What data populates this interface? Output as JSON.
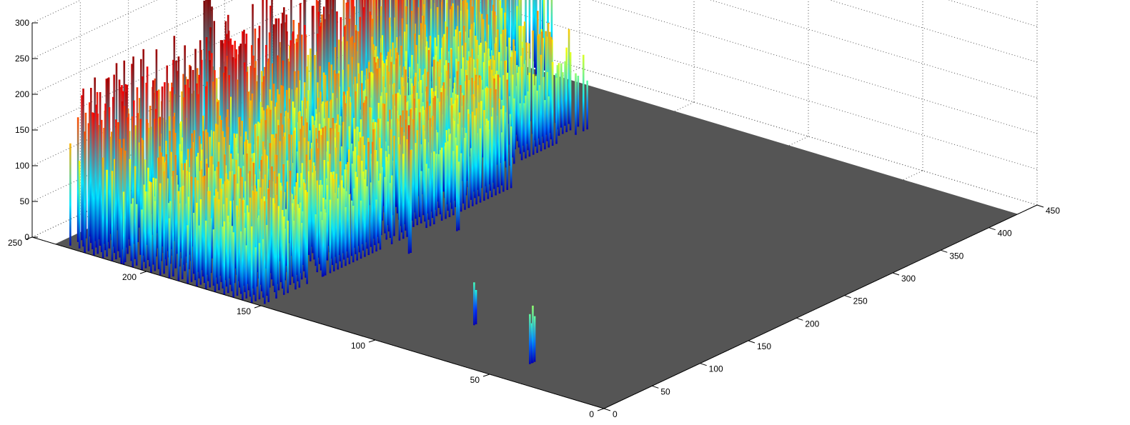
{
  "chart_data": {
    "type": "surface",
    "title": "",
    "xlabel": "",
    "ylabel": "",
    "zlabel": "",
    "grid": true,
    "box": "open 3D axes with dotted grid",
    "colormap": "jet",
    "floor_color": "#555555",
    "x_axis": {
      "lim": [
        0,
        450
      ],
      "ticks": [
        0,
        50,
        100,
        150,
        200,
        250,
        300,
        350,
        400,
        450
      ]
    },
    "y_axis": {
      "lim": [
        0,
        250
      ],
      "ticks": [
        0,
        50,
        100,
        150,
        200,
        250
      ]
    },
    "z_axis": {
      "lim": [
        0,
        300
      ],
      "ticks": [
        0,
        50,
        100,
        150,
        200,
        250,
        300
      ]
    },
    "ridges": [
      {
        "y_range": [
          210,
          235
        ],
        "x_range": [
          0,
          300
        ],
        "z_max": 235
      },
      {
        "y_range": [
          150,
          210
        ],
        "x_range": [
          0,
          260
        ],
        "z_max": 160
      },
      {
        "y_range": [
          205,
          240
        ],
        "x_range": [
          300,
          440
        ],
        "z_max": 230
      },
      {
        "y_range": [
          160,
          215
        ],
        "x_range": [
          250,
          370
        ],
        "z_max": 150
      }
    ],
    "peaks": [
      {
        "x": 140,
        "y": 232,
        "z": 275
      },
      {
        "x": 150,
        "y": 228,
        "z": 220
      },
      {
        "x": 355,
        "y": 232,
        "z": 250
      }
    ],
    "isolated_spikes": [
      {
        "x": 60,
        "y": 82,
        "z": 60
      },
      {
        "x": 30,
        "y": 45,
        "z": 70
      },
      {
        "x": 33,
        "y": 45,
        "z": 80
      },
      {
        "x": 130,
        "y": 140,
        "z": 180
      },
      {
        "x": 180,
        "y": 140,
        "z": 120
      },
      {
        "x": 65,
        "y": 150,
        "z": 110
      }
    ]
  }
}
